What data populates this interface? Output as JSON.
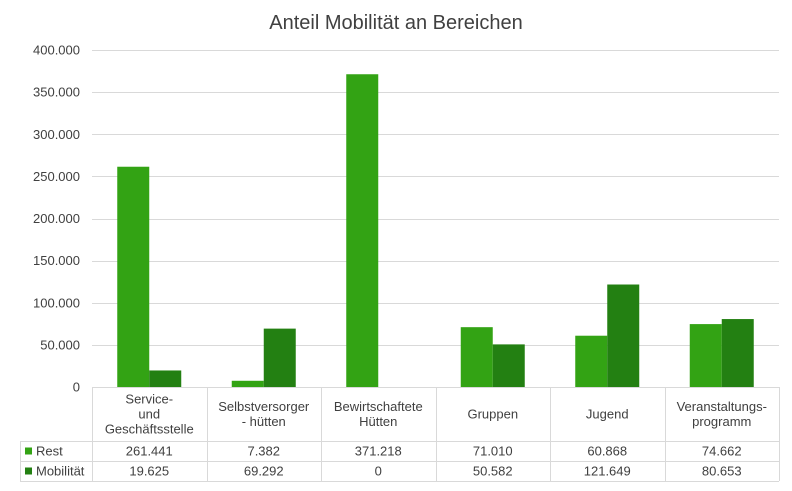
{
  "chart_data": {
    "type": "bar",
    "title": "Anteil Mobilität an Bereichen",
    "categories": [
      [
        "Service-",
        "und",
        "Geschäftsstelle"
      ],
      [
        "Selbstversorger",
        "- hütten"
      ],
      [
        "Bewirtschaftete",
        "Hütten"
      ],
      [
        "Gruppen"
      ],
      [
        "Jugend"
      ],
      [
        "Veranstaltungs-",
        "programm"
      ]
    ],
    "series": [
      {
        "name": "Rest",
        "color": "#33a314",
        "values": [
          261441,
          7382,
          371218,
          71010,
          60868,
          74662
        ],
        "labels": [
          "261.441",
          "7.382",
          "371.218",
          "71.010",
          "60.868",
          "74.662"
        ]
      },
      {
        "name": "Mobilität",
        "color": "#238012",
        "values": [
          19625,
          69292,
          0,
          50582,
          121649,
          80653
        ],
        "labels": [
          "19.625",
          "69.292",
          "0",
          "50.582",
          "121.649",
          "80.653"
        ]
      }
    ],
    "ylim": [
      0,
      400000
    ],
    "yticks": [
      0,
      50000,
      100000,
      150000,
      200000,
      250000,
      300000,
      350000,
      400000
    ],
    "ytick_labels": [
      "0",
      "50.000",
      "100.000",
      "150.000",
      "200.000",
      "250.000",
      "300.000",
      "350.000",
      "400.000"
    ],
    "grid": true,
    "legend": "data-table",
    "colors": {
      "grid": "#d9d9d9",
      "text": "#404040"
    }
  }
}
